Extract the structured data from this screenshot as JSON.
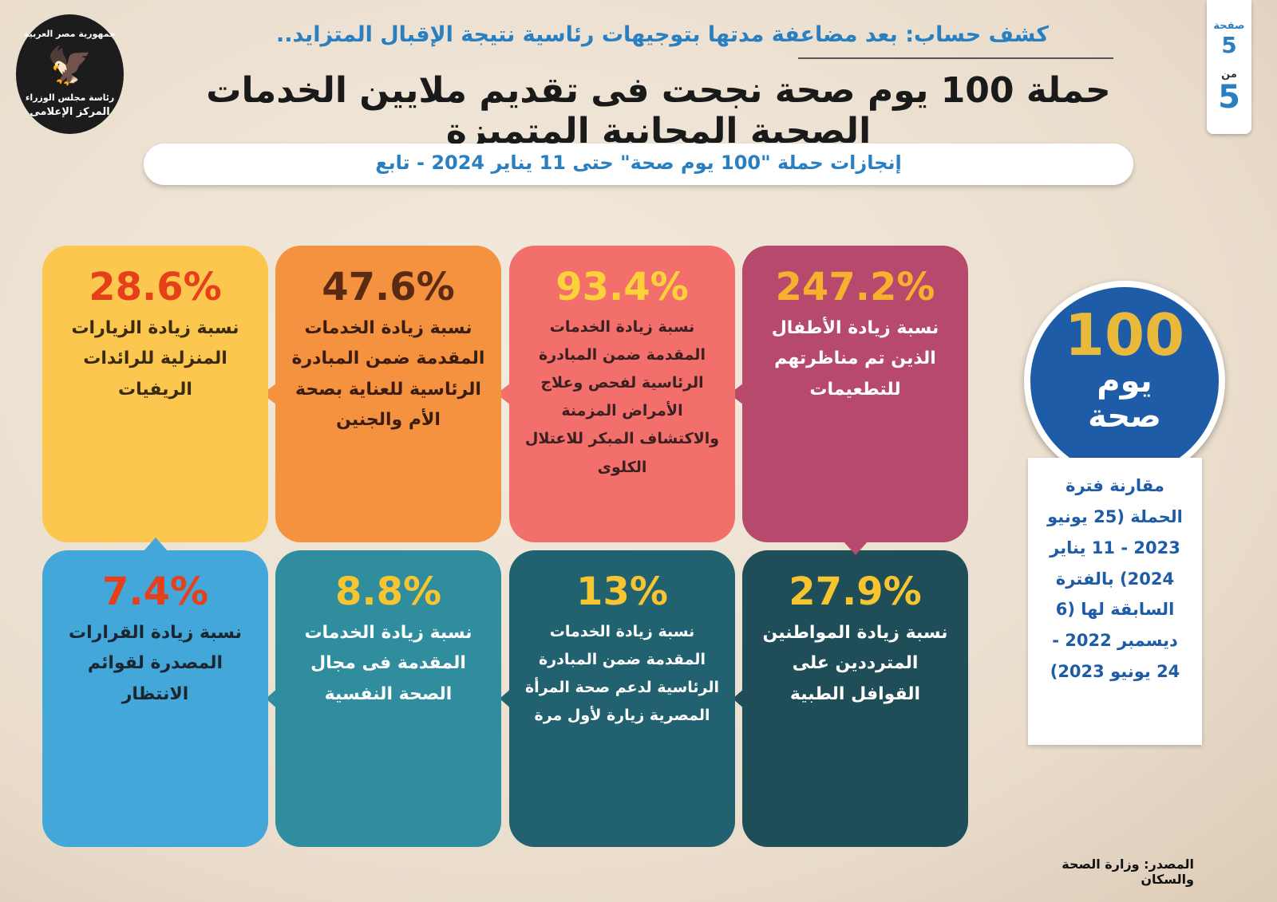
{
  "header": {
    "kicker": "كشف حساب: بعد مضاعفة مدتها بتوجيهات رئاسية نتيجة الإقبال المتزايد..",
    "title": "حملة 100 يوم صحة نجحت فى تقديم ملايين الخدمات الصحية المجانية المتميزة",
    "subtitle": "إنجازات حملة \"100 يوم صحة\" حتى 11 يناير 2024 - تابع"
  },
  "page_badge": {
    "page_label": "صفحة",
    "page": "5",
    "of_label": "من",
    "total": "5"
  },
  "logo": {
    "line1": "جمهورية مصر العربية",
    "line2": "رئاسة مجلس الوزراء",
    "line3": "المركز الإعلامى"
  },
  "cards": [
    {
      "value": "247.2%",
      "text": "نسبة زيادة الأطفال الذين تم مناظرتهم للتطعيمات"
    },
    {
      "value": "93.4%",
      "text": "نسبة زيادة الخدمات المقدمة ضمن المبادرة الرئاسية لفحص وعلاج الأمراض المزمنة والاكتشاف المبكر للاعتلال الكلوى"
    },
    {
      "value": "47.6%",
      "text": "نسبة زيادة الخدمات المقدمة ضمن المبادرة الرئاسية للعناية بصحة الأم والجنين"
    },
    {
      "value": "28.6%",
      "text": "نسبة زيادة الزيارات المنزلية للرائدات الريفيات"
    },
    {
      "value": "27.9%",
      "text": "نسبة زيادة المواطنين المترددين على القوافل الطبية"
    },
    {
      "value": "13%",
      "text": "نسبة زيادة الخدمات المقدمة ضمن المبادرة الرئاسية لدعم صحة المرأة المصرية زيارة لأول مرة"
    },
    {
      "value": "8.8%",
      "text": "نسبة زيادة الخدمات المقدمة فى مجال الصحة النفسية"
    },
    {
      "value": "7.4%",
      "text": "نسبة زيادة القرارات المصدرة لقوائم الانتظار"
    }
  ],
  "campaign_logo": {
    "number": "100",
    "line1": "يوم",
    "line2": "صحة"
  },
  "comparison": "مقارنة فترة الحملة (25 يونيو 2023 - 11 يناير 2024) بالفترة السابقة لها (6 ديسمبر 2022 - 24 يونيو 2023)",
  "source": "المصدر: وزارة الصحة والسكان"
}
